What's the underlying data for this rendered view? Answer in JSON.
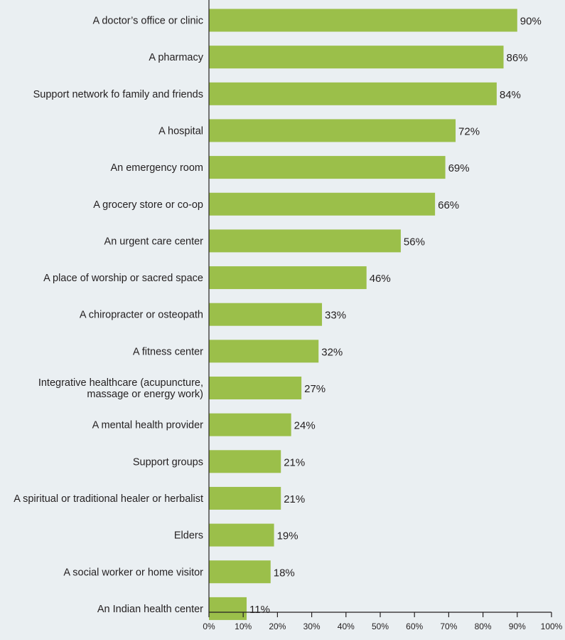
{
  "chart_data": {
    "type": "bar",
    "orientation": "horizontal",
    "categories": [
      [
        "A doctor’s office or clinic"
      ],
      [
        "A pharmacy"
      ],
      [
        "Support network fo family and friends"
      ],
      [
        "A hospital"
      ],
      [
        "An emergency room"
      ],
      [
        "A grocery store or co-op"
      ],
      [
        "An urgent care center"
      ],
      [
        "A place of worship or sacred space"
      ],
      [
        "A chiropracter or osteopath"
      ],
      [
        "A fitness center"
      ],
      [
        "Integrative healthcare (acupuncture,",
        "massage or energy work)"
      ],
      [
        "A mental health provider"
      ],
      [
        "Support groups"
      ],
      [
        "A spiritual or traditional healer or herbalist"
      ],
      [
        "Elders"
      ],
      [
        "A social worker or home visitor"
      ],
      [
        "An Indian health center"
      ]
    ],
    "values": [
      90,
      86,
      84,
      72,
      69,
      66,
      56,
      46,
      33,
      32,
      27,
      24,
      21,
      21,
      19,
      18,
      11
    ],
    "value_labels": [
      "90%",
      "86%",
      "84%",
      "72%",
      "69%",
      "66%",
      "56%",
      "46%",
      "33%",
      "32%",
      "27%",
      "24%",
      "21%",
      "21%",
      "19%",
      "18%",
      "11%"
    ],
    "xlim": [
      0,
      100
    ],
    "x_ticks": [
      "0%",
      "10%",
      "20%",
      "30%",
      "40%",
      "50%",
      "60%",
      "70%",
      "80%",
      "90%",
      "100%"
    ],
    "bar_color": "#9bbf4a",
    "axis_color": "#231f20",
    "grid": false,
    "legend": "none",
    "title": "",
    "xlabel": "",
    "ylabel": ""
  }
}
